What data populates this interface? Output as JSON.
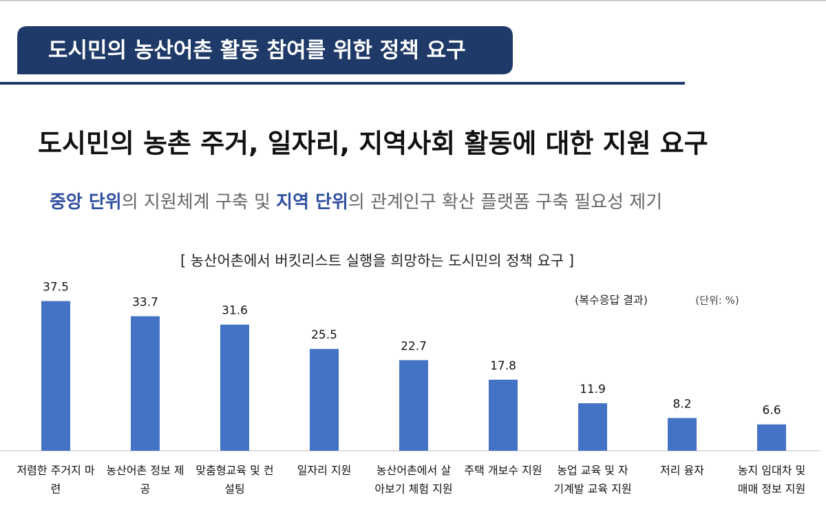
{
  "header": {
    "title": "도시민의 농산어촌 활동 참여를 위한 정책 요구"
  },
  "headline": "도시민의 농촌 주거, 일자리, 지역사회 활동에 대한 지원 요구",
  "subtitle": [
    "중앙 단위",
    "의 지원체계 구축 및 ",
    "지역 단위",
    "의 관계인구 확산 플랫폼 구축 필요성 제기"
  ],
  "chart_data": {
    "type": "bar",
    "title": "[ 농산어촌에서 버킷리스트 실행을 희망하는 도시민의 정책 요구 ]",
    "note": "(복수응답 결과)",
    "unit": "(단위: %)",
    "categories": [
      "저렴한 주거지 마련",
      "농산어촌 정보 제공",
      "맞춤형교육 및 컨설팅",
      "일자리 지원",
      "농산어촌에서 살아보기 체험 지원",
      "주택 개보수 지원",
      "농업 교육 및 자기계발 교육 지원",
      "저리 융자",
      "농지 임대차 및 매매 정보 지원"
    ],
    "values": [
      37.5,
      33.7,
      31.6,
      25.5,
      22.7,
      17.8,
      11.9,
      8.2,
      6.6
    ],
    "color": "#4472c4"
  }
}
